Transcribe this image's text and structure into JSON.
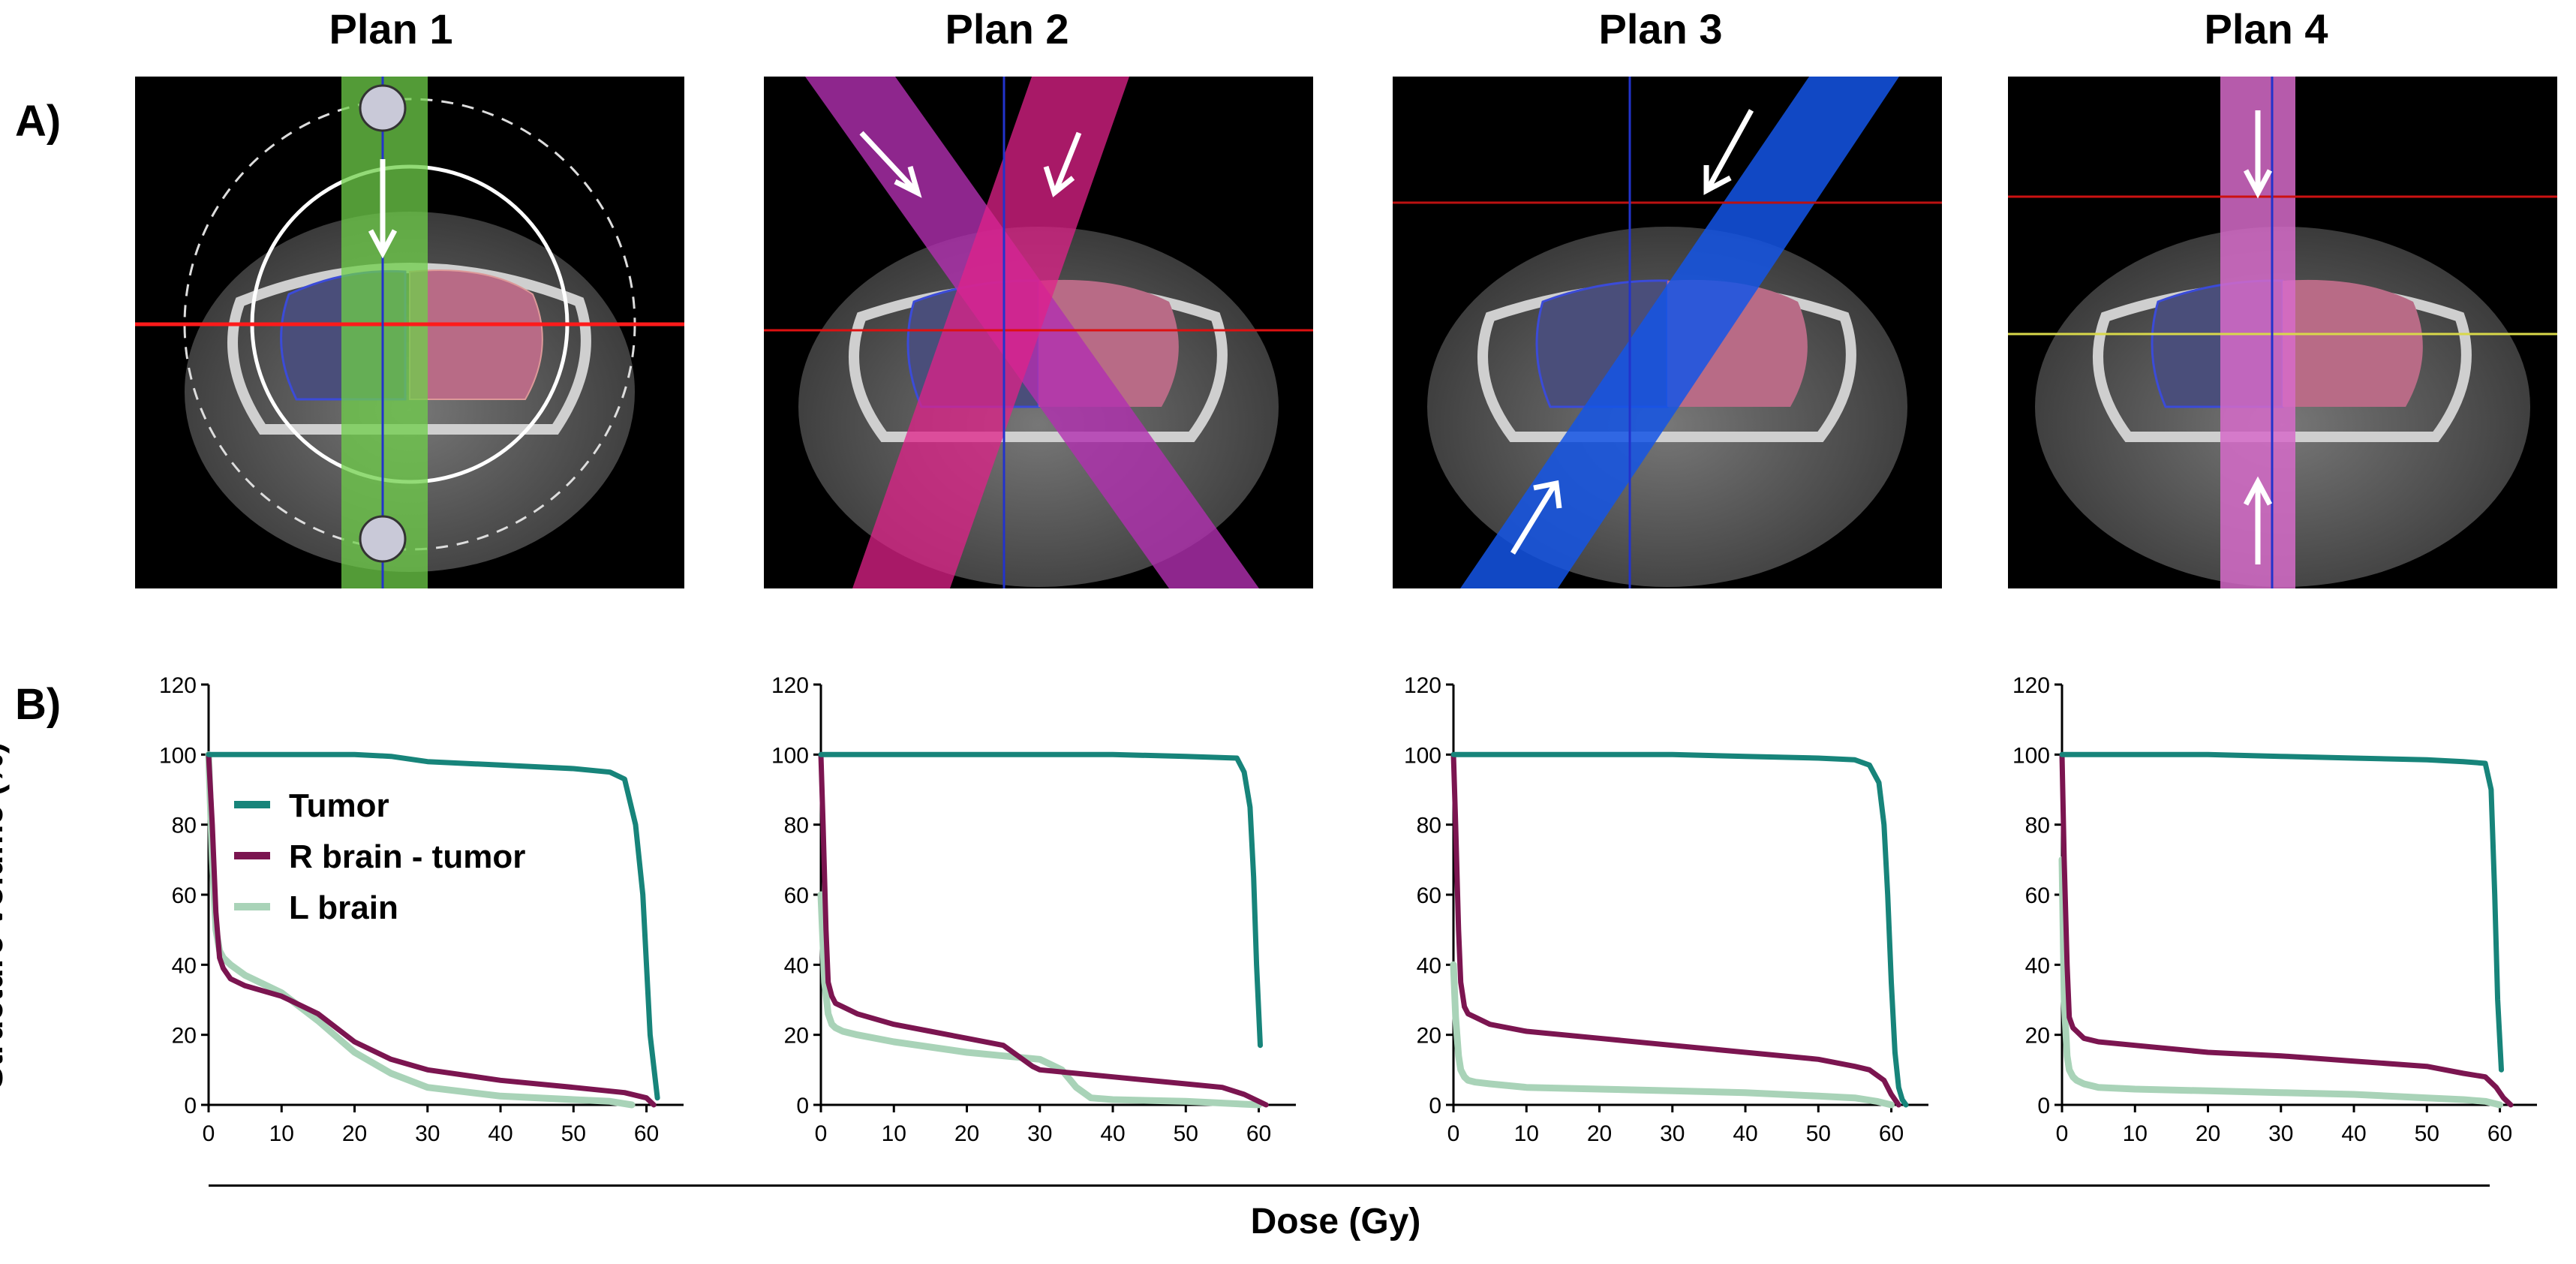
{
  "panels": {
    "a_label": "A)",
    "b_label": "B)"
  },
  "plans": [
    {
      "title": "Plan 1"
    },
    {
      "title": "Plan 2"
    },
    {
      "title": "Plan 3"
    },
    {
      "title": "Plan 4"
    }
  ],
  "colors": {
    "tumor": "#17847a",
    "r_brain": "#7b1550",
    "l_brain": "#a9d3b8",
    "beam_green": "#6fcf4a",
    "beam_purple": "#b12fb0",
    "beam_magenta": "#e0218a",
    "beam_blue": "#1455e6",
    "beam_pink": "#d66bc9"
  },
  "chart_data": [
    {
      "type": "line",
      "plan": "Plan 1",
      "xlabel": "Dose (Gy)",
      "ylabel": "Structure volume (%)",
      "xlim": [
        0,
        62
      ],
      "ylim": [
        0,
        120
      ],
      "xticks": [
        "0",
        "10",
        "20",
        "30",
        "40",
        "50",
        "60"
      ],
      "yticks": [
        "0",
        "20",
        "40",
        "60",
        "80",
        "100",
        "120"
      ],
      "legend": [
        "Tumor",
        "R brain  - tumor",
        "L brain"
      ],
      "legend_position": "left",
      "series": [
        {
          "name": "Tumor",
          "x": [
            0,
            10,
            20,
            25,
            30,
            40,
            50,
            55,
            57,
            58.5,
            59.5,
            60.5,
            61.5
          ],
          "y": [
            100,
            100,
            100,
            99.5,
            98,
            97,
            96,
            95,
            93,
            80,
            60,
            20,
            2
          ]
        },
        {
          "name": "R brain  - tumor",
          "x": [
            0,
            0.5,
            1,
            1.5,
            2,
            3,
            5,
            10,
            15,
            20,
            25,
            30,
            40,
            50,
            57,
            60,
            61
          ],
          "y": [
            100,
            80,
            55,
            42,
            39,
            36,
            34,
            31,
            26,
            18,
            13,
            10,
            7,
            5,
            3.5,
            2,
            0
          ]
        },
        {
          "name": "L brain",
          "x": [
            0,
            0.5,
            1,
            1.5,
            2,
            3,
            5,
            10,
            15,
            20,
            25,
            30,
            40,
            50,
            55,
            58
          ],
          "y": [
            100,
            70,
            50,
            44,
            42,
            40,
            37,
            32,
            24,
            15,
            9,
            5,
            2.5,
            1.5,
            1,
            0
          ]
        }
      ]
    },
    {
      "type": "line",
      "plan": "Plan 2",
      "xlim": [
        0,
        62
      ],
      "ylim": [
        0,
        120
      ],
      "xticks": [
        "0",
        "10",
        "20",
        "30",
        "40",
        "50",
        "60"
      ],
      "yticks": [
        "0",
        "20",
        "40",
        "60",
        "80",
        "100",
        "120"
      ],
      "series": [
        {
          "name": "Tumor",
          "x": [
            0,
            10,
            20,
            30,
            40,
            50,
            57,
            58,
            58.8,
            59.3,
            59.7,
            60.2
          ],
          "y": [
            100,
            100,
            100,
            100,
            100,
            99.5,
            99,
            95,
            85,
            65,
            40,
            17
          ]
        },
        {
          "name": "R brain  - tumor",
          "x": [
            0,
            0.3,
            0.7,
            1,
            1.5,
            2,
            3,
            5,
            10,
            15,
            20,
            25,
            27,
            29,
            30,
            35,
            40,
            50,
            55,
            58,
            60,
            61
          ],
          "y": [
            100,
            80,
            50,
            35,
            31,
            29,
            28,
            26,
            23,
            21,
            19,
            17,
            14,
            11,
            10,
            9,
            8,
            6,
            5,
            3,
            1,
            0
          ]
        },
        {
          "name": "L brain",
          "x": [
            0,
            0.5,
            1,
            1.5,
            2,
            3,
            5,
            10,
            15,
            20,
            25,
            30,
            33,
            35,
            37,
            40,
            50,
            60
          ],
          "y": [
            60,
            35,
            26,
            23,
            22,
            21,
            20,
            18,
            16.5,
            15,
            14,
            13,
            10,
            5,
            2,
            1.5,
            1,
            0
          ]
        }
      ]
    },
    {
      "type": "line",
      "plan": "Plan 3",
      "xlim": [
        0,
        62
      ],
      "ylim": [
        0,
        120
      ],
      "xticks": [
        "0",
        "10",
        "20",
        "30",
        "40",
        "50",
        "60"
      ],
      "yticks": [
        "0",
        "20",
        "40",
        "60",
        "80",
        "100",
        "120"
      ],
      "series": [
        {
          "name": "Tumor",
          "x": [
            0,
            10,
            20,
            30,
            40,
            50,
            55,
            57,
            58.3,
            59,
            59.5,
            60,
            60.5,
            61,
            61.5,
            62
          ],
          "y": [
            100,
            100,
            100,
            100,
            99.5,
            99,
            98.5,
            97,
            92,
            80,
            60,
            35,
            15,
            5,
            1.5,
            0
          ]
        },
        {
          "name": "R brain  - tumor",
          "x": [
            0,
            0.3,
            0.7,
            1,
            1.5,
            2,
            3,
            5,
            10,
            20,
            30,
            40,
            50,
            55,
            57,
            59,
            60,
            61
          ],
          "y": [
            100,
            80,
            50,
            35,
            28,
            26,
            25,
            23,
            21,
            19,
            17,
            15,
            13,
            11,
            10,
            7,
            3,
            0
          ]
        },
        {
          "name": "L brain",
          "x": [
            0,
            0.3,
            0.7,
            1,
            1.5,
            2,
            3,
            5,
            10,
            20,
            30,
            40,
            50,
            55,
            58,
            60
          ],
          "y": [
            40,
            25,
            14,
            10,
            8,
            7,
            6.5,
            6,
            5,
            4.5,
            4,
            3.5,
            2.5,
            2,
            1,
            0
          ]
        }
      ]
    },
    {
      "type": "line",
      "plan": "Plan 4",
      "xlim": [
        0,
        62
      ],
      "ylim": [
        0,
        120
      ],
      "xticks": [
        "0",
        "10",
        "20",
        "30",
        "40",
        "50",
        "60"
      ],
      "yticks": [
        "0",
        "20",
        "40",
        "60",
        "80",
        "100",
        "120"
      ],
      "series": [
        {
          "name": "Tumor",
          "x": [
            0,
            10,
            20,
            30,
            40,
            50,
            55,
            58,
            58.8,
            59.3,
            59.7,
            60.2
          ],
          "y": [
            100,
            100,
            100,
            99.5,
            99,
            98.5,
            98,
            97.5,
            90,
            60,
            30,
            10
          ]
        },
        {
          "name": "R brain  - tumor",
          "x": [
            0,
            0.3,
            0.7,
            1,
            1.5,
            2,
            3,
            5,
            10,
            20,
            30,
            40,
            50,
            55,
            58,
            59.5,
            60.5,
            61.5
          ],
          "y": [
            100,
            70,
            40,
            25,
            22,
            21,
            19,
            18,
            17,
            15,
            14,
            12.5,
            11,
            9,
            8,
            5,
            2,
            0
          ]
        },
        {
          "name": "L brain",
          "x": [
            0,
            0.3,
            0.7,
            1,
            1.5,
            2,
            3,
            5,
            10,
            20,
            30,
            40,
            50,
            55,
            58,
            60
          ],
          "y": [
            70,
            30,
            14,
            10,
            8,
            7,
            6,
            5,
            4.5,
            4,
            3.5,
            3,
            2,
            1.5,
            1,
            0
          ]
        }
      ]
    }
  ]
}
